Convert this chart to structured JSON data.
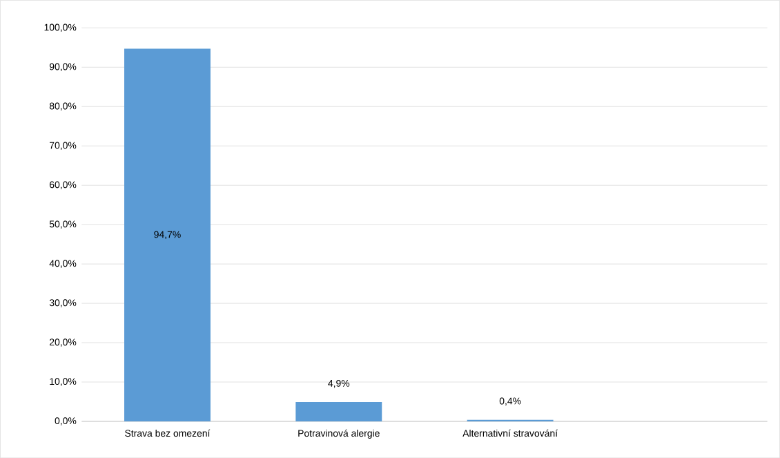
{
  "chart_data": {
    "type": "bar",
    "categories": [
      "Strava bez omezení",
      "Potravinová alergie",
      "Alternativní stravování",
      null
    ],
    "values": [
      94.7,
      4.9,
      0.4,
      null
    ],
    "value_labels": [
      "94,7%",
      "4,9%",
      "0,4%",
      null
    ],
    "color": "#5b9bd5",
    "ylim": [
      0,
      100
    ],
    "yticks": [
      {
        "value": 0,
        "label": "0,0%"
      },
      {
        "value": 10,
        "label": "10,0%"
      },
      {
        "value": 20,
        "label": "20,0%"
      },
      {
        "value": 30,
        "label": "30,0%"
      },
      {
        "value": 40,
        "label": "40,0%"
      },
      {
        "value": 50,
        "label": "50,0%"
      },
      {
        "value": 60,
        "label": "60,0%"
      },
      {
        "value": 70,
        "label": "70,0%"
      },
      {
        "value": 80,
        "label": "80,0%"
      },
      {
        "value": 90,
        "label": "90,0%"
      },
      {
        "value": 100,
        "label": "100,0%"
      }
    ],
    "grid": "y"
  }
}
